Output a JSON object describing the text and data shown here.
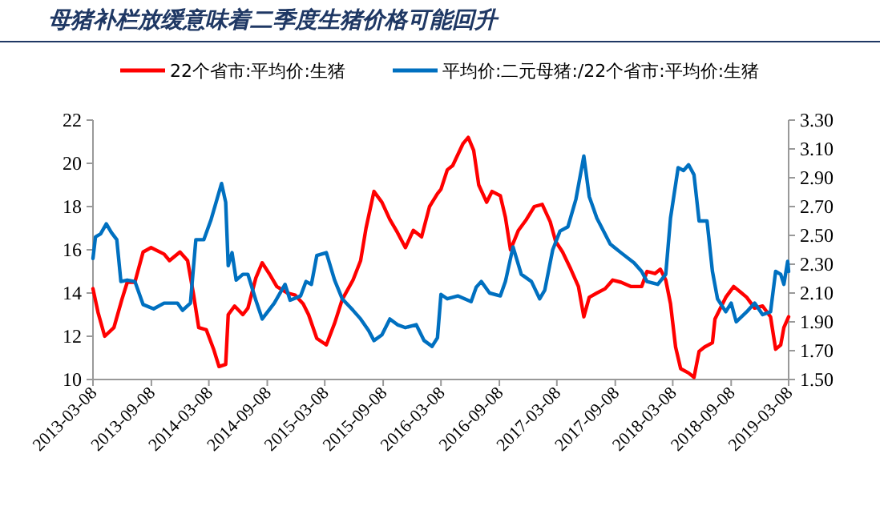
{
  "chart_data": {
    "type": "line",
    "title": "母猪补栏放缓意味着二季度生猪价格可能回升",
    "xlim": [
      "2013-03-08",
      "2019-03-08"
    ],
    "xticks": [
      "2013-03-08",
      "2013-09-08",
      "2014-03-08",
      "2014-09-08",
      "2015-03-08",
      "2015-09-08",
      "2016-03-08",
      "2016-09-08",
      "2017-03-08",
      "2017-09-08",
      "2018-03-08",
      "2018-09-08",
      "2019-03-08"
    ],
    "ylim": [
      10,
      22
    ],
    "yticks": [
      10,
      12,
      14,
      16,
      18,
      20,
      22
    ],
    "y2lim": [
      1.5,
      3.3
    ],
    "y2ticks": [
      {
        "value": 1.5,
        "label": "1.50"
      },
      {
        "value": 1.7,
        "label": "1.70"
      },
      {
        "value": 1.9,
        "label": "1.90"
      },
      {
        "value": 2.1,
        "label": "2.10"
      },
      {
        "value": 2.3,
        "label": "2.30"
      },
      {
        "value": 2.5,
        "label": "2.50"
      },
      {
        "value": 2.7,
        "label": "2.70"
      },
      {
        "value": 2.9,
        "label": "2.90"
      },
      {
        "value": 3.1,
        "label": "3.10"
      },
      {
        "value": 3.3,
        "label": "3.30"
      }
    ],
    "legend": "top",
    "series": [
      {
        "name": "22个省市:平均价:生猪",
        "color": "#ff0000",
        "x": [
          "2013-03-08",
          "2013-03-24",
          "2013-04-14",
          "2013-05-13",
          "2013-06-07",
          "2013-06-24",
          "2013-07-18",
          "2013-08-13",
          "2013-09-07",
          "2013-10-18",
          "2013-11-04",
          "2013-12-07",
          "2013-12-31",
          "2014-01-18",
          "2014-02-04",
          "2014-02-28",
          "2014-03-23",
          "2014-04-09",
          "2014-04-30",
          "2014-05-08",
          "2014-05-28",
          "2014-06-23",
          "2014-07-09",
          "2014-08-03",
          "2014-08-23",
          "2014-09-14",
          "2014-10-08",
          "2014-11-11",
          "2014-12-05",
          "2014-12-30",
          "2015-01-16",
          "2015-02-11",
          "2015-03-13",
          "2015-04-08",
          "2015-05-02",
          "2015-06-05",
          "2015-06-29",
          "2015-07-16",
          "2015-08-10",
          "2015-09-04",
          "2015-09-29",
          "2015-10-23",
          "2015-11-17",
          "2015-12-12",
          "2016-01-07",
          "2016-02-01",
          "2016-02-26",
          "2016-03-08",
          "2016-03-28",
          "2016-04-14",
          "2016-04-30",
          "2016-05-16",
          "2016-06-02",
          "2016-06-19",
          "2016-07-05",
          "2016-07-30",
          "2016-08-16",
          "2016-09-11",
          "2016-09-27",
          "2016-10-13",
          "2016-11-07",
          "2016-12-02",
          "2016-12-27",
          "2017-01-21",
          "2017-02-15",
          "2017-03-04",
          "2017-03-26",
          "2017-04-21",
          "2017-05-15",
          "2017-06-01",
          "2017-06-18",
          "2017-07-12",
          "2017-08-07",
          "2017-08-31",
          "2017-09-26",
          "2017-10-28",
          "2017-11-30",
          "2017-12-17",
          "2018-01-11",
          "2018-01-28",
          "2018-02-14",
          "2018-03-01",
          "2018-03-17",
          "2018-04-02",
          "2018-04-27",
          "2018-05-14",
          "2018-05-30",
          "2018-06-16",
          "2018-07-11",
          "2018-07-19",
          "2018-08-05",
          "2018-08-22",
          "2018-09-16",
          "2018-10-11",
          "2018-10-27",
          "2018-11-21",
          "2018-12-16",
          "2019-01-10",
          "2019-01-26",
          "2019-02-11",
          "2019-02-21",
          "2019-03-08"
        ],
        "values": [
          14.2,
          13.1,
          12.0,
          12.4,
          13.7,
          14.5,
          14.5,
          15.9,
          16.1,
          15.8,
          15.5,
          15.9,
          15.5,
          14.0,
          12.4,
          12.3,
          11.4,
          10.6,
          10.7,
          13.0,
          13.4,
          13.0,
          13.3,
          14.7,
          15.4,
          14.9,
          14.3,
          14.0,
          13.9,
          13.5,
          13.0,
          11.9,
          11.6,
          12.6,
          13.7,
          14.6,
          15.5,
          17.0,
          18.7,
          18.2,
          17.4,
          16.8,
          16.1,
          16.9,
          16.6,
          18.0,
          18.6,
          18.8,
          19.7,
          19.9,
          20.4,
          20.9,
          21.2,
          20.6,
          19.0,
          18.2,
          18.7,
          18.5,
          17.5,
          16.0,
          16.9,
          17.4,
          18.0,
          18.1,
          17.3,
          16.4,
          15.9,
          15.1,
          14.3,
          12.9,
          13.8,
          14.0,
          14.2,
          14.6,
          14.5,
          14.3,
          14.3,
          15.0,
          14.9,
          15.1,
          14.6,
          13.5,
          11.5,
          10.5,
          10.3,
          10.1,
          11.3,
          11.5,
          11.7,
          12.8,
          13.3,
          13.8,
          14.3,
          14.0,
          13.8,
          13.3,
          13.4,
          12.9,
          11.4,
          11.6,
          12.4,
          12.9
        ]
      },
      {
        "name": "平均价:二元母猪:/22个省市:平均价:生猪",
        "color": "#0070c0",
        "axis": "y2",
        "x": [
          "2013-03-08",
          "2013-03-16",
          "2013-04-01",
          "2013-04-19",
          "2013-05-05",
          "2013-05-22",
          "2013-06-04",
          "2013-06-24",
          "2013-07-18",
          "2013-08-13",
          "2013-09-15",
          "2013-10-18",
          "2013-11-29",
          "2013-12-15",
          "2014-01-09",
          "2014-01-26",
          "2014-02-20",
          "2014-03-15",
          "2014-04-17",
          "2014-04-30",
          "2014-05-08",
          "2014-05-20",
          "2014-06-02",
          "2014-06-23",
          "2014-07-09",
          "2014-08-03",
          "2014-08-23",
          "2014-09-30",
          "2014-11-03",
          "2014-11-19",
          "2014-12-22",
          "2015-01-08",
          "2015-01-25",
          "2015-02-11",
          "2015-03-13",
          "2015-04-08",
          "2015-05-02",
          "2015-06-05",
          "2015-06-29",
          "2015-07-24",
          "2015-08-10",
          "2015-09-04",
          "2015-09-29",
          "2015-10-23",
          "2015-11-17",
          "2015-12-21",
          "2016-01-15",
          "2016-02-09",
          "2016-02-26",
          "2016-03-08",
          "2016-03-28",
          "2016-04-30",
          "2016-06-11",
          "2016-06-27",
          "2016-07-13",
          "2016-08-08",
          "2016-09-11",
          "2016-09-27",
          "2016-10-21",
          "2016-11-16",
          "2016-12-18",
          "2017-01-13",
          "2017-01-29",
          "2017-02-23",
          "2017-03-18",
          "2017-04-12",
          "2017-05-07",
          "2017-06-01",
          "2017-06-18",
          "2017-07-12",
          "2017-08-23",
          "2017-09-26",
          "2017-11-06",
          "2017-11-30",
          "2017-12-17",
          "2018-01-20",
          "2018-02-14",
          "2018-03-01",
          "2018-03-25",
          "2018-04-11",
          "2018-04-27",
          "2018-05-14",
          "2018-05-30",
          "2018-06-24",
          "2018-07-11",
          "2018-07-27",
          "2018-08-22",
          "2018-09-08",
          "2018-09-24",
          "2018-10-27",
          "2018-11-21",
          "2018-12-16",
          "2019-01-10",
          "2019-01-26",
          "2019-02-11",
          "2019-02-21",
          "2019-03-05",
          "2019-03-08"
        ],
        "values": [
          2.34,
          2.49,
          2.51,
          2.58,
          2.52,
          2.47,
          2.18,
          2.19,
          2.18,
          2.02,
          1.99,
          2.03,
          2.03,
          1.98,
          2.03,
          2.47,
          2.47,
          2.61,
          2.86,
          2.73,
          2.29,
          2.38,
          2.19,
          2.23,
          2.23,
          2.05,
          1.92,
          2.03,
          2.16,
          2.05,
          2.08,
          2.18,
          2.16,
          2.36,
          2.38,
          2.19,
          2.06,
          1.98,
          1.92,
          1.84,
          1.77,
          1.81,
          1.92,
          1.88,
          1.86,
          1.88,
          1.77,
          1.73,
          1.79,
          2.09,
          2.06,
          2.08,
          2.04,
          2.14,
          2.18,
          2.1,
          2.08,
          2.18,
          2.42,
          2.23,
          2.18,
          2.06,
          2.12,
          2.4,
          2.53,
          2.56,
          2.75,
          3.05,
          2.77,
          2.62,
          2.44,
          2.38,
          2.31,
          2.25,
          2.18,
          2.16,
          2.23,
          2.62,
          2.97,
          2.95,
          2.99,
          2.92,
          2.6,
          2.6,
          2.25,
          2.06,
          1.97,
          2.03,
          1.9,
          1.97,
          2.03,
          1.95,
          1.97,
          2.25,
          2.23,
          2.16,
          2.32,
          2.25
        ]
      }
    ]
  }
}
